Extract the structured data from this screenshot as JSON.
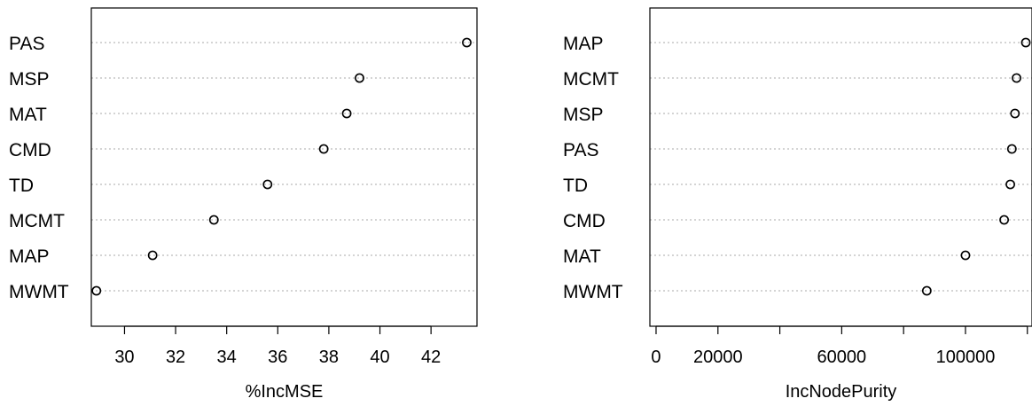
{
  "chart_data": [
    {
      "type": "scatter",
      "variant": "dotchart",
      "xlabel": "%IncMSE",
      "xlim": [
        28.7,
        43.8
      ],
      "ticks": [
        30,
        32,
        34,
        36,
        38,
        40,
        42
      ],
      "tick_labels": [
        "30",
        "32",
        "34",
        "36",
        "38",
        "40",
        "42"
      ],
      "grid": "horizontal-dotted",
      "point_color": "#000000",
      "categories": [
        "PAS",
        "MSP",
        "MAT",
        "CMD",
        "TD",
        "MCMT",
        "MAP",
        "MWMT"
      ],
      "values": [
        43.4,
        39.2,
        38.7,
        37.8,
        35.6,
        33.5,
        31.1,
        28.9
      ]
    },
    {
      "type": "scatter",
      "variant": "dotchart",
      "xlabel": "IncNodePurity",
      "xlim": [
        -2000,
        121500
      ],
      "ticks": [
        0,
        20000,
        40000,
        60000,
        80000,
        100000,
        120000
      ],
      "tick_labels": [
        "0",
        "20000",
        "",
        "60000",
        "",
        "100000",
        ""
      ],
      "grid": "horizontal-dotted",
      "point_color": "#000000",
      "categories": [
        "MAP",
        "MCMT",
        "MSP",
        "PAS",
        "TD",
        "CMD",
        "MAT",
        "MWMT"
      ],
      "values": [
        119500,
        116500,
        116000,
        115000,
        114500,
        112500,
        100000,
        87500
      ]
    }
  ]
}
